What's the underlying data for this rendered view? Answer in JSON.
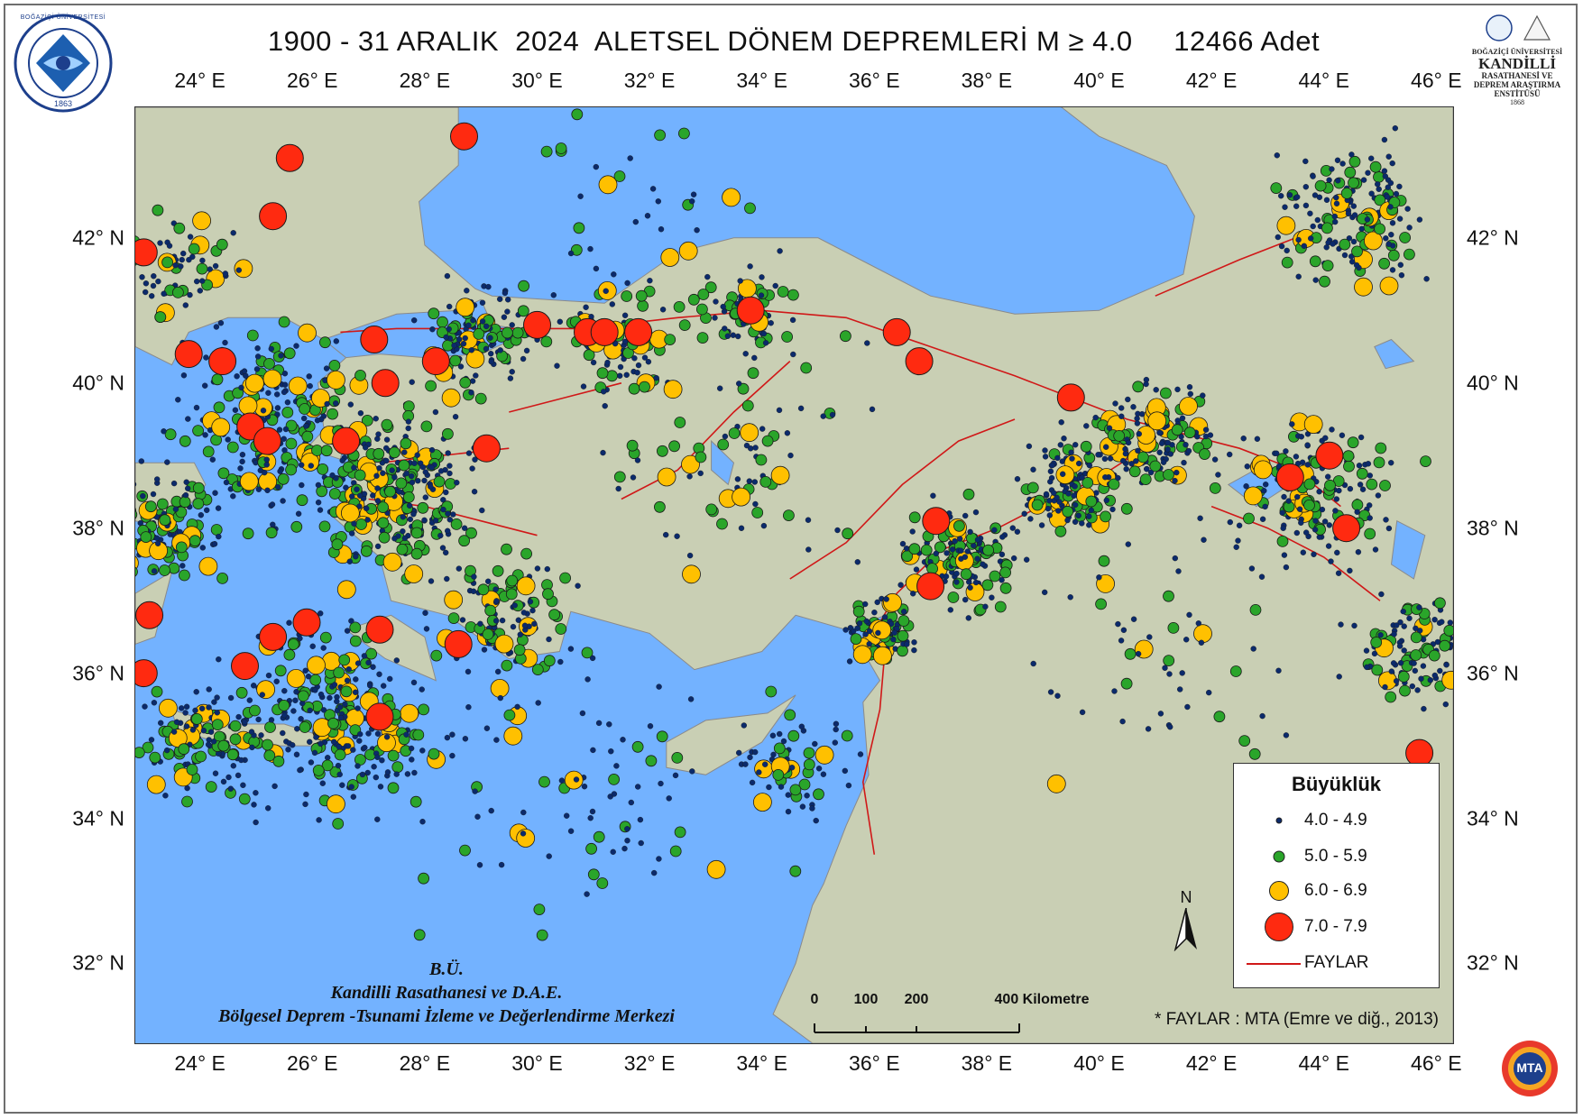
{
  "title": "1900 - 31 ARALIK  2024  ALETSEL DÖNEM DEPREMLERİ M ≥ 4.0     12466 Adet",
  "axes": {
    "lon_labels": [
      "24° E",
      "26° E",
      "28° E",
      "30° E",
      "32° E",
      "34° E",
      "36° E",
      "38° E",
      "40° E",
      "42° E",
      "44° E",
      "46° E"
    ],
    "lat_labels": [
      "42° N",
      "40° N",
      "38° N",
      "36° N",
      "34° N",
      "32° N"
    ]
  },
  "legend": {
    "title": "Büyüklük",
    "classes": [
      {
        "label": "4.0 - 4.9",
        "color": "#0b2a6b"
      },
      {
        "label": "5.0 - 5.9",
        "color": "#2aa52a"
      },
      {
        "label": "6.0 - 6.9",
        "color": "#ffc000"
      },
      {
        "label": "7.0 - 7.9",
        "color": "#ff2a10"
      }
    ],
    "fault_label": "FAYLAR",
    "fault_color": "#d01818"
  },
  "scale_bar": {
    "labels": [
      "0",
      "100",
      "200",
      "400 Kilometre"
    ]
  },
  "north_label": "N",
  "credits": {
    "line1": "B.Ü.",
    "line2": "Kandilli Rasathanesi ve D.A.E.",
    "line3": "Bölgesel Deprem -Tsunami İzleme ve Değerlendirme Merkezi"
  },
  "source_note": "* FAYLAR : MTA (Emre ve diğ., 2013)",
  "logos": {
    "left": {
      "text_top": "BOĞAZİÇİ ÜNİVERSİTESİ",
      "year": "1863"
    },
    "right": {
      "line1": "BOĞAZİÇİ ÜNİVERSİTESİ",
      "line2": "KANDİLLİ",
      "line3": "RASATHANESİ VE",
      "line4": "DEPREM ARAŞTIRMA",
      "line5": "ENSTİTÜSÜ",
      "year": "1868"
    },
    "bottom": {
      "text": "MTA"
    }
  },
  "colors": {
    "sea": "#73b2ff",
    "land": "#c9cfb4",
    "land_dark": "#b8bfa2",
    "border": "#8a8a8a"
  },
  "map_data": {
    "extent": {
      "lon_min": 22.85,
      "lon_max": 46.3,
      "lat_min": 30.9,
      "lat_max": 43.8
    },
    "earthquake_clusters": [
      {
        "lon": 25.5,
        "lat": 39.3,
        "spread": 1.6,
        "count": 260
      },
      {
        "lon": 27.5,
        "lat": 38.5,
        "spread": 1.2,
        "count": 260
      },
      {
        "lon": 26.5,
        "lat": 35.4,
        "spread": 1.5,
        "count": 280
      },
      {
        "lon": 24.0,
        "lat": 35.0,
        "spread": 1.0,
        "count": 120
      },
      {
        "lon": 23.5,
        "lat": 38.0,
        "spread": 0.8,
        "count": 120
      },
      {
        "lon": 29.0,
        "lat": 40.6,
        "spread": 0.9,
        "count": 120
      },
      {
        "lon": 31.5,
        "lat": 40.6,
        "spread": 1.0,
        "count": 90
      },
      {
        "lon": 33.7,
        "lat": 41.0,
        "spread": 0.7,
        "count": 70
      },
      {
        "lon": 37.5,
        "lat": 37.6,
        "spread": 0.8,
        "count": 150
      },
      {
        "lon": 36.1,
        "lat": 36.6,
        "spread": 0.5,
        "count": 90
      },
      {
        "lon": 39.5,
        "lat": 38.6,
        "spread": 0.8,
        "count": 140
      },
      {
        "lon": 41.0,
        "lat": 39.3,
        "spread": 0.9,
        "count": 150
      },
      {
        "lon": 43.8,
        "lat": 38.5,
        "spread": 1.2,
        "count": 180
      },
      {
        "lon": 44.5,
        "lat": 42.3,
        "spread": 1.2,
        "count": 170
      },
      {
        "lon": 45.6,
        "lat": 36.3,
        "spread": 0.9,
        "count": 110
      },
      {
        "lon": 34.5,
        "lat": 34.8,
        "spread": 0.9,
        "count": 60
      },
      {
        "lon": 29.5,
        "lat": 36.8,
        "spread": 1.1,
        "count": 110
      },
      {
        "lon": 23.6,
        "lat": 41.6,
        "spread": 1.0,
        "count": 70
      },
      {
        "lon": 30.5,
        "lat": 34.5,
        "spread": 2.5,
        "count": 90
      },
      {
        "lon": 33.5,
        "lat": 39.0,
        "spread": 2.0,
        "count": 80
      },
      {
        "lon": 41.0,
        "lat": 36.5,
        "spread": 2.5,
        "count": 60
      },
      {
        "lon": 32.0,
        "lat": 42.8,
        "spread": 2.5,
        "count": 40
      }
    ],
    "major_events_m7": [
      {
        "lon": 28.7,
        "lat": 43.4
      },
      {
        "lon": 25.6,
        "lat": 43.1
      },
      {
        "lon": 25.3,
        "lat": 42.3
      },
      {
        "lon": 23.0,
        "lat": 41.8
      },
      {
        "lon": 23.8,
        "lat": 40.4
      },
      {
        "lon": 24.4,
        "lat": 40.3
      },
      {
        "lon": 27.1,
        "lat": 40.6
      },
      {
        "lon": 27.3,
        "lat": 40.0
      },
      {
        "lon": 28.2,
        "lat": 40.3
      },
      {
        "lon": 30.0,
        "lat": 40.8
      },
      {
        "lon": 30.9,
        "lat": 40.7
      },
      {
        "lon": 31.2,
        "lat": 40.7
      },
      {
        "lon": 31.8,
        "lat": 40.7
      },
      {
        "lon": 33.8,
        "lat": 41.0
      },
      {
        "lon": 36.4,
        "lat": 40.7
      },
      {
        "lon": 36.8,
        "lat": 40.3
      },
      {
        "lon": 39.5,
        "lat": 39.8
      },
      {
        "lon": 24.9,
        "lat": 39.4
      },
      {
        "lon": 25.2,
        "lat": 39.2
      },
      {
        "lon": 26.6,
        "lat": 39.2
      },
      {
        "lon": 29.1,
        "lat": 39.1
      },
      {
        "lon": 37.1,
        "lat": 38.1
      },
      {
        "lon": 37.0,
        "lat": 37.2
      },
      {
        "lon": 43.4,
        "lat": 38.7
      },
      {
        "lon": 44.1,
        "lat": 39.0
      },
      {
        "lon": 44.4,
        "lat": 38.0
      },
      {
        "lon": 23.1,
        "lat": 36.8
      },
      {
        "lon": 25.3,
        "lat": 36.5
      },
      {
        "lon": 25.9,
        "lat": 36.7
      },
      {
        "lon": 27.2,
        "lat": 36.6
      },
      {
        "lon": 28.6,
        "lat": 36.4
      },
      {
        "lon": 24.8,
        "lat": 36.1
      },
      {
        "lon": 23.0,
        "lat": 36.0
      },
      {
        "lon": 27.2,
        "lat": 35.4
      },
      {
        "lon": 45.7,
        "lat": 34.9
      }
    ]
  }
}
